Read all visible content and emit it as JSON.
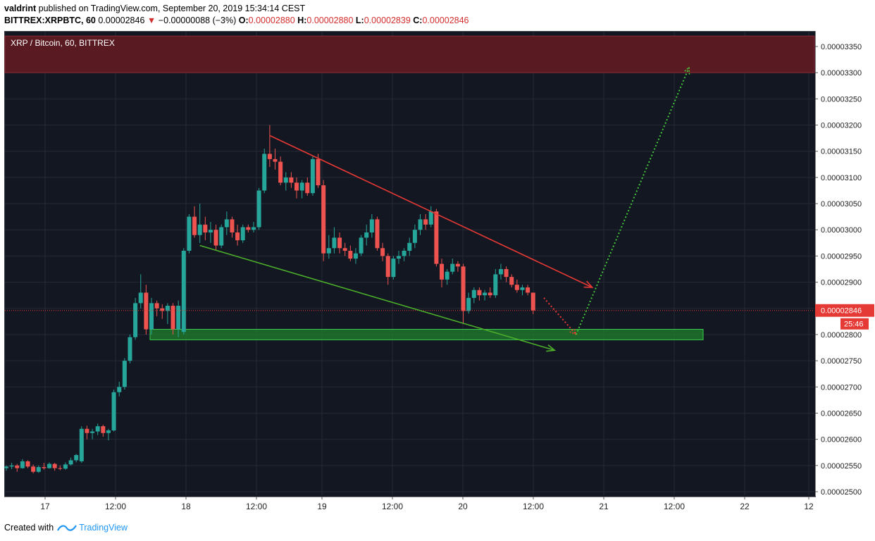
{
  "header": {
    "author": "valdrint",
    "published_text": "published on TradingView.com, September 20, 2019 15:34:14 CEST",
    "symbol": "BITTREX:XRPBTC, 60",
    "last": "0.00002846",
    "change": "−0.00000088 (−3%)",
    "o_label": "O:",
    "o": "0.00002880",
    "h_label": "H:",
    "h": "0.00002880",
    "l_label": "L:",
    "l": "0.00002839",
    "c_label": "C:",
    "c": "0.00002846"
  },
  "chart_title": "XRP / Bitcoin, 60, BITTREX",
  "footer": {
    "created_with": "Created with",
    "brand": "TradingView"
  },
  "colors": {
    "background": "#131722",
    "up": "#26a69a",
    "down": "#ef5350",
    "resistance_zone": "#5a1a22",
    "support_zone": "#1e7a2a",
    "current_price": "#e53935"
  },
  "chart_data": {
    "type": "candlestick",
    "ylim": [
      2.5e-05,
      3.37e-05
    ],
    "y_ticks": [
      "0.00003350",
      "0.00003300",
      "0.00003250",
      "0.00003200",
      "0.00003150",
      "0.00003100",
      "0.00003050",
      "0.00003000",
      "0.00002950",
      "0.00002900",
      "0.00002850",
      "0.00002800",
      "0.00002750",
      "0.00002700",
      "0.00002650",
      "0.00002600",
      "0.00002550",
      "0.00002500"
    ],
    "x_ticks": [
      "17",
      "12:00",
      "18",
      "12:00",
      "19",
      "12:00",
      "20",
      "12:00",
      "21",
      "12:00",
      "22",
      "12"
    ],
    "current_price": "0.00002846",
    "countdown": "25:46",
    "candles": [
      [
        2.545e-05,
        2.55e-05,
        2.54e-05,
        2.548e-05
      ],
      [
        2.548e-05,
        2.555e-05,
        2.543e-05,
        2.55e-05
      ],
      [
        2.55e-05,
        2.553e-05,
        2.538e-05,
        2.545e-05
      ],
      [
        2.545e-05,
        2.562e-05,
        2.544e-05,
        2.558e-05
      ],
      [
        2.558e-05,
        2.56e-05,
        2.545e-05,
        2.548e-05
      ],
      [
        2.548e-05,
        2.552e-05,
        2.535e-05,
        2.538e-05
      ],
      [
        2.538e-05,
        2.55e-05,
        2.536e-05,
        2.547e-05
      ],
      [
        2.547e-05,
        2.555e-05,
        2.542e-05,
        2.545e-05
      ],
      [
        2.545e-05,
        2.556e-05,
        2.544e-05,
        2.553e-05
      ],
      [
        2.553e-05,
        2.555e-05,
        2.54e-05,
        2.545e-05
      ],
      [
        2.545e-05,
        2.55e-05,
        2.541e-05,
        2.544e-05
      ],
      [
        2.544e-05,
        2.556e-05,
        2.542e-05,
        2.552e-05
      ],
      [
        2.552e-05,
        2.565e-05,
        2.55e-05,
        2.56e-05
      ],
      [
        2.56e-05,
        2.572e-05,
        2.556e-05,
        2.57e-05
      ],
      [
        2.558e-05,
        2.625e-05,
        2.555e-05,
        2.62e-05
      ],
      [
        2.62e-05,
        2.626e-05,
        2.6e-05,
        2.612e-05
      ],
      [
        2.612e-05,
        2.62e-05,
        2.6e-05,
        2.615e-05
      ],
      [
        2.615e-05,
        2.63e-05,
        2.608e-05,
        2.625e-05
      ],
      [
        2.625e-05,
        2.628e-05,
        2.605e-05,
        2.612e-05
      ],
      [
        2.612e-05,
        2.62e-05,
        2.598e-05,
        2.617e-05
      ],
      [
        2.617e-05,
        2.695e-05,
        2.615e-05,
        2.69e-05
      ],
      [
        2.69e-05,
        2.71e-05,
        2.682e-05,
        2.7e-05
      ],
      [
        2.7e-05,
        2.755e-05,
        2.695e-05,
        2.75e-05
      ],
      [
        2.75e-05,
        2.8e-05,
        2.745e-05,
        2.795e-05
      ],
      [
        2.795e-05,
        2.87e-05,
        2.79e-05,
        2.86e-05
      ],
      [
        2.86e-05,
        2.915e-05,
        2.85e-05,
        2.88e-05
      ],
      [
        2.88e-05,
        2.895e-05,
        2.8e-05,
        2.81e-05
      ],
      [
        2.81e-05,
        2.87e-05,
        2.8e-05,
        2.86e-05
      ],
      [
        2.86e-05,
        2.865e-05,
        2.835e-05,
        2.85e-05
      ],
      [
        2.85e-05,
        2.858e-05,
        2.83e-05,
        2.845e-05
      ],
      [
        2.845e-05,
        2.86e-05,
        2.82e-05,
        2.855e-05
      ],
      [
        2.855e-05,
        2.86e-05,
        2.8e-05,
        2.81e-05
      ],
      [
        2.81e-05,
        2.865e-05,
        2.795e-05,
        2.855e-05
      ],
      [
        2.805e-05,
        2.965e-05,
        2.8e-05,
        2.96e-05
      ],
      [
        2.96e-05,
        3.03e-05,
        2.955e-05,
        3.025e-05
      ],
      [
        3.025e-05,
        3.045e-05,
        2.985e-05,
        2.99e-05
      ],
      [
        2.99e-05,
        3.05e-05,
        2.975e-05,
        3.01e-05
      ],
      [
        3.01e-05,
        3.025e-05,
        2.98e-05,
        2.995e-05
      ],
      [
        2.995e-05,
        3.015e-05,
        2.975e-05,
        3e-05
      ],
      [
        3e-05,
        3.01e-05,
        2.96e-05,
        2.97e-05
      ],
      [
        2.97e-05,
        3.01e-05,
        2.965e-05,
        3.005e-05
      ],
      [
        3.005e-05,
        3.035e-05,
        2.99e-05,
        3.02e-05
      ],
      [
        3.02e-05,
        3.025e-05,
        2.985e-05,
        2.995e-05
      ],
      [
        2.995e-05,
        3.01e-05,
        2.97e-05,
        2.98e-05
      ],
      [
        2.98e-05,
        3.01e-05,
        2.975e-05,
        3.005e-05
      ],
      [
        3.005e-05,
        3.01e-05,
        2.995e-05,
        3e-05
      ],
      [
        3e-05,
        3.015e-05,
        2.995e-05,
        3.005e-05
      ],
      [
        3.005e-05,
        3.08e-05,
        3e-05,
        3.075e-05
      ],
      [
        3.075e-05,
        3.155e-05,
        3.07e-05,
        3.145e-05
      ],
      [
        3.145e-05,
        3.2e-05,
        3.12e-05,
        3.135e-05
      ],
      [
        3.135e-05,
        3.155e-05,
        3.115e-05,
        3.13e-05
      ],
      [
        3.13e-05,
        3.14e-05,
        3.085e-05,
        3.09e-05
      ],
      [
        3.09e-05,
        3.11e-05,
        3.075e-05,
        3.1e-05
      ],
      [
        3.1e-05,
        3.11e-05,
        3.08e-05,
        3.09e-05
      ],
      [
        3.09e-05,
        3.1e-05,
        3.06e-05,
        3.075e-05
      ],
      [
        3.075e-05,
        3.095e-05,
        3.06e-05,
        3.09e-05
      ],
      [
        3.09e-05,
        3.1e-05,
        3.065e-05,
        3.07e-05
      ],
      [
        3.07e-05,
        3.14e-05,
        3.065e-05,
        3.135e-05
      ],
      [
        3.135e-05,
        3.145e-05,
        3.08e-05,
        3.085e-05
      ],
      [
        3.085e-05,
        3.095e-05,
        2.94e-05,
        2.955e-05
      ],
      [
        2.955e-05,
        2.99e-05,
        2.945e-05,
        2.965e-05
      ],
      [
        2.965e-05,
        3.005e-05,
        2.955e-05,
        2.985e-05
      ],
      [
        2.985e-05,
        2.995e-05,
        2.955e-05,
        2.965e-05
      ],
      [
        2.965e-05,
        2.975e-05,
        2.95e-05,
        2.96e-05
      ],
      [
        2.96e-05,
        2.97e-05,
        2.94e-05,
        2.945e-05
      ],
      [
        2.945e-05,
        2.965e-05,
        2.935e-05,
        2.955e-05
      ],
      [
        2.955e-05,
        2.99e-05,
        2.95e-05,
        2.985e-05
      ],
      [
        2.985e-05,
        3.01e-05,
        2.97e-05,
        2.995e-05
      ],
      [
        2.995e-05,
        3.03e-05,
        2.985e-05,
        3.02e-05
      ],
      [
        3.02e-05,
        3.025e-05,
        2.96e-05,
        2.965e-05
      ],
      [
        2.965e-05,
        2.975e-05,
        2.94e-05,
        2.95e-05
      ],
      [
        2.95e-05,
        2.955e-05,
        2.895e-05,
        2.91e-05
      ],
      [
        2.91e-05,
        2.95e-05,
        2.905e-05,
        2.945e-05
      ],
      [
        2.945e-05,
        2.96e-05,
        2.935e-05,
        2.95e-05
      ],
      [
        2.95e-05,
        2.965e-05,
        2.94e-05,
        2.96e-05
      ],
      [
        2.96e-05,
        2.985e-05,
        2.95e-05,
        2.975e-05
      ],
      [
        2.975e-05,
        3.01e-05,
        2.965e-05,
        3e-05
      ],
      [
        3e-05,
        3.03e-05,
        2.99e-05,
        3.02e-05
      ],
      [
        3.02e-05,
        3.03e-05,
        3e-05,
        3.01e-05
      ],
      [
        3.01e-05,
        3.045e-05,
        3.005e-05,
        3.035e-05
      ],
      [
        3.035e-05,
        3.04e-05,
        2.93e-05,
        2.935e-05
      ],
      [
        2.935e-05,
        2.945e-05,
        2.89e-05,
        2.905e-05
      ],
      [
        2.905e-05,
        2.925e-05,
        2.895e-05,
        2.92e-05
      ],
      [
        2.92e-05,
        2.945e-05,
        2.915e-05,
        2.935e-05
      ],
      [
        2.935e-05,
        2.94e-05,
        2.92e-05,
        2.93e-05
      ],
      [
        2.93e-05,
        2.935e-05,
        2.82e-05,
        2.845e-05
      ],
      [
        2.845e-05,
        2.88e-05,
        2.84e-05,
        2.87e-05
      ],
      [
        2.87e-05,
        2.89e-05,
        2.86e-05,
        2.885e-05
      ],
      [
        2.885e-05,
        2.89e-05,
        2.865e-05,
        2.875e-05
      ],
      [
        2.875e-05,
        2.885e-05,
        2.865e-05,
        2.88e-05
      ],
      [
        2.88e-05,
        2.89e-05,
        2.87e-05,
        2.875e-05
      ],
      [
        2.875e-05,
        2.925e-05,
        2.87e-05,
        2.915e-05
      ],
      [
        2.915e-05,
        2.935e-05,
        2.905e-05,
        2.925e-05
      ],
      [
        2.925e-05,
        2.93e-05,
        2.9e-05,
        2.91e-05
      ],
      [
        2.91e-05,
        2.915e-05,
        2.89e-05,
        2.895e-05
      ],
      [
        2.895e-05,
        2.905e-05,
        2.88e-05,
        2.885e-05
      ],
      [
        2.885e-05,
        2.895e-05,
        2.875e-05,
        2.89e-05
      ],
      [
        2.89e-05,
        2.895e-05,
        2.875e-05,
        2.88e-05
      ],
      [
        2.88e-05,
        2.88e-05,
        2.839e-05,
        2.846e-05
      ]
    ],
    "zones": [
      {
        "name": "resistance",
        "from": 3.3e-05,
        "to": 3.37e-05
      },
      {
        "name": "support",
        "from": 2.79e-05,
        "to": 2.81e-05
      }
    ],
    "trendlines": [
      {
        "name": "upper-trendline",
        "from": [
          49,
          3.18e-05
        ],
        "to": [
          109,
          2.89e-05
        ]
      },
      {
        "name": "lower-trendline",
        "from": [
          36,
          2.97e-05
        ],
        "to": [
          102,
          2.77e-05
        ]
      }
    ],
    "projections": [
      {
        "name": "projected-drop",
        "from": [
          100,
          2.87e-05
        ],
        "to": [
          106,
          2.8e-05
        ]
      },
      {
        "name": "projected-breakout",
        "from": [
          106,
          2.8e-05
        ],
        "to": [
          127,
          3.31e-05
        ]
      }
    ]
  }
}
